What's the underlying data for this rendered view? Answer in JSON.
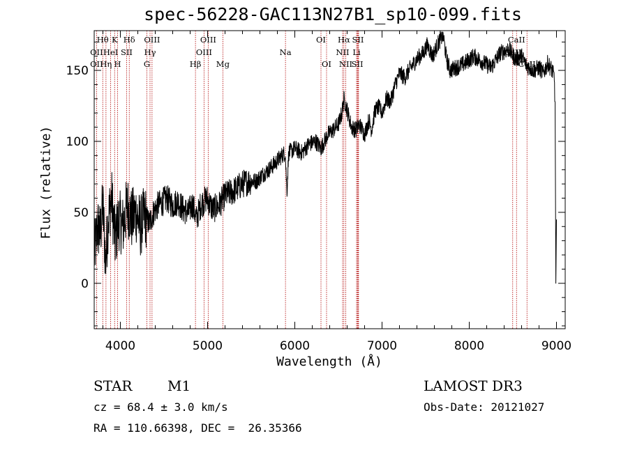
{
  "chart_data": {
    "type": "line",
    "title": "spec-56228-GAC113N27B1_sp10-099.fits",
    "xlabel": "Wavelength (Å)",
    "ylabel": "Flux (relative)",
    "xlim": [
      3700,
      9100
    ],
    "ylim": [
      -32,
      178
    ],
    "xticks": [
      4000,
      5000,
      6000,
      7000,
      8000,
      9000
    ],
    "yticks": [
      0,
      50,
      100,
      150
    ],
    "series": [
      {
        "name": "flux",
        "x": [
          3700,
          3740,
          3770,
          3800,
          3830,
          3860,
          3900,
          3940,
          3980,
          4030,
          4080,
          4130,
          4180,
          4230,
          4280,
          4330,
          4380,
          4430,
          4480,
          4530,
          4600,
          4660,
          4720,
          4780,
          4830,
          4870,
          4920,
          4990,
          5060,
          5130,
          5200,
          5300,
          5400,
          5480,
          5560,
          5620,
          5700,
          5780,
          5850,
          5890,
          5910,
          5930,
          6000,
          6080,
          6160,
          6240,
          6300,
          6380,
          6440,
          6500,
          6540,
          6563,
          6600,
          6650,
          6700,
          6740,
          6800,
          6850,
          6880,
          6920,
          6960,
          7000,
          7050,
          7100,
          7150,
          7200,
          7260,
          7330,
          7400,
          7470,
          7520,
          7580,
          7650,
          7700,
          7740,
          7780,
          7850,
          7950,
          8050,
          8150,
          8250,
          8350,
          8450,
          8530,
          8600,
          8660,
          8740,
          8800,
          8850,
          8900,
          8950,
          8975,
          8985,
          8993,
          9000
        ],
        "y": [
          20,
          40,
          35,
          55,
          15,
          45,
          60,
          30,
          45,
          40,
          55,
          45,
          50,
          40,
          48,
          42,
          50,
          55,
          57,
          60,
          55,
          58,
          52,
          50,
          56,
          45,
          55,
          60,
          52,
          55,
          62,
          65,
          70,
          72,
          72,
          76,
          80,
          85,
          90,
          92,
          65,
          92,
          95,
          92,
          98,
          100,
          95,
          105,
          108,
          112,
          120,
          130,
          122,
          110,
          108,
          112,
          105,
          115,
          108,
          122,
          124,
          120,
          130,
          128,
          140,
          148,
          145,
          152,
          158,
          162,
          168,
          160,
          170,
          175,
          158,
          150,
          152,
          155,
          160,
          156,
          152,
          162,
          165,
          158,
          160,
          153,
          150,
          152,
          148,
          155,
          150,
          145,
          122,
          0,
          45
        ]
      }
    ],
    "emission_lines": {
      "labels": [
        {
          "name": "Hθ",
          "wl": 3798,
          "row": 0
        },
        {
          "name": "K",
          "wl": 3934,
          "row": 0
        },
        {
          "name": "Hδ",
          "wl": 4102,
          "row": 0
        },
        {
          "name": "OIII",
          "wl": 4363,
          "row": 0
        },
        {
          "name": "OIII",
          "wl": 5007,
          "row": 0
        },
        {
          "name": "OI",
          "wl": 6300,
          "row": 0
        },
        {
          "name": "Hα",
          "wl": 6563,
          "row": 0
        },
        {
          "name": "SII",
          "wl": 6724,
          "row": 0
        },
        {
          "name": "CaII",
          "wl": 8542,
          "row": 0
        },
        {
          "name": "OII",
          "wl": 3727,
          "row": 1
        },
        {
          "name": "HeI",
          "wl": 3889,
          "row": 1
        },
        {
          "name": "SII",
          "wl": 4072,
          "row": 1
        },
        {
          "name": "Hγ",
          "wl": 4340,
          "row": 1
        },
        {
          "name": "OIII",
          "wl": 4959,
          "row": 1
        },
        {
          "name": "Na",
          "wl": 5893,
          "row": 1
        },
        {
          "name": "NII",
          "wl": 6548,
          "row": 1
        },
        {
          "name": "Li",
          "wl": 6708,
          "row": 1
        },
        {
          "name": "CaII",
          "wl": 8498,
          "row": 1
        },
        {
          "name": "OII",
          "wl": 3727,
          "row": 2
        },
        {
          "name": "Hη",
          "wl": 3835,
          "row": 2
        },
        {
          "name": "H",
          "wl": 3968,
          "row": 2
        },
        {
          "name": "G",
          "wl": 4304,
          "row": 2
        },
        {
          "name": "Hβ",
          "wl": 4861,
          "row": 2
        },
        {
          "name": "Mg",
          "wl": 5175,
          "row": 2
        },
        {
          "name": "OI",
          "wl": 6364,
          "row": 2
        },
        {
          "name": "NII",
          "wl": 6584,
          "row": 2
        },
        {
          "name": "SII",
          "wl": 6717,
          "row": 2
        },
        {
          "name": "CaII",
          "wl": 8662,
          "row": 2
        }
      ],
      "line_wavelengths": [
        3727,
        3798,
        3835,
        3889,
        3934,
        3968,
        4072,
        4102,
        4304,
        4340,
        4363,
        4861,
        4959,
        5007,
        5175,
        5893,
        6300,
        6364,
        6548,
        6563,
        6584,
        6708,
        6717,
        6724,
        6731,
        8498,
        8542,
        8662
      ]
    }
  },
  "object": {
    "class": "STAR",
    "subclass": "M1"
  },
  "survey": "LAMOST DR3",
  "cz_line": "cz = 68.4 ± 3.0 km/s",
  "obs_line": "Obs-Date: 20121027",
  "coord_line": "RA = 110.66398, DEC =  26.35366",
  "colors": {
    "spectrum": "#000000",
    "lines": "#b00000"
  }
}
